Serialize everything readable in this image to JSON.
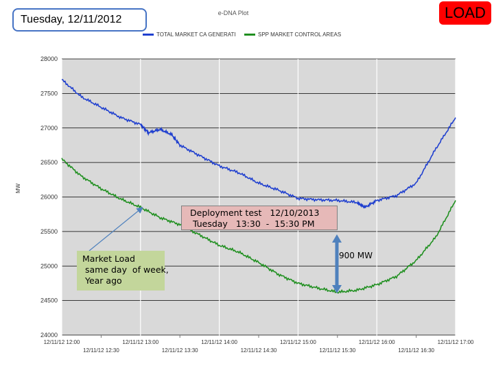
{
  "header": {
    "date_label": "Tuesday, 12/11/2012",
    "badge_label": "LOAD"
  },
  "annotations": {
    "deployment_line1": "Deployment test   12/10/2013",
    "deployment_line2": " Tuesday   13:30  -  15:30 PM",
    "market_line1": "Market Load",
    "market_line2": " same day  of week,",
    "market_line3": " Year ago",
    "mw_label": "900 MW"
  },
  "colors": {
    "series_total": "#1f3fcf",
    "series_spp": "#1f8f1f",
    "plot_bg": "#d9d9d9",
    "deploy_box": "#e6b9b8",
    "market_box": "#c3d69b",
    "badge": "#ff0000",
    "arrow": "#4f81bd"
  },
  "chart_data": {
    "type": "line",
    "title": "e-DNA Plot",
    "ylabel": "MW",
    "xlabel": "",
    "ylim": [
      24000,
      28000
    ],
    "yticks": [
      24000,
      24500,
      25000,
      25500,
      26000,
      26500,
      27000,
      27500,
      28000
    ],
    "ytick_labels": [
      "24000",
      "24500",
      "25000",
      "25500",
      "26000",
      "26500",
      "27000",
      "27500",
      "28000"
    ],
    "xlim": [
      0,
      5
    ],
    "xticks_major": [
      0,
      1,
      2,
      3,
      4,
      5
    ],
    "xtick_labels_major": [
      "12/11/12 12:00",
      "12/11/12 13:00",
      "12/11/12 14:00",
      "12/11/12 15:00",
      "12/11/12 16:00",
      "12/11/12 17:00"
    ],
    "xticks_minor": [
      0.5,
      1.5,
      2.5,
      3.5,
      4.5
    ],
    "xtick_labels_minor": [
      "12/11/12 12:30",
      "12/11/12 13:30",
      "12/11/12 14:30",
      "12/11/12 15:30",
      "12/11/12 16:30"
    ],
    "grid": true,
    "legend_position": "top",
    "series": [
      {
        "name": "TOTAL MARKET CA GENERATI",
        "x": [
          0,
          0.25,
          0.5,
          0.75,
          1.0,
          1.1,
          1.25,
          1.4,
          1.5,
          1.75,
          2.0,
          2.25,
          2.5,
          2.75,
          3.0,
          3.25,
          3.5,
          3.75,
          3.85,
          4.0,
          4.25,
          4.5,
          4.75,
          5.0
        ],
        "values": [
          27700,
          27450,
          27300,
          27150,
          27050,
          26930,
          26980,
          26900,
          26750,
          26600,
          26450,
          26350,
          26200,
          26100,
          25980,
          25960,
          25950,
          25920,
          25850,
          25950,
          26020,
          26200,
          26700,
          27150
        ]
      },
      {
        "name": "SPP MARKET CONTROL AREAS",
        "x": [
          0,
          0.25,
          0.5,
          0.75,
          1.0,
          1.25,
          1.5,
          1.75,
          2.0,
          2.25,
          2.5,
          2.75,
          3.0,
          3.25,
          3.5,
          3.75,
          4.0,
          4.25,
          4.5,
          4.75,
          5.0
        ],
        "values": [
          26550,
          26300,
          26120,
          25970,
          25850,
          25700,
          25600,
          25450,
          25300,
          25200,
          25050,
          24880,
          24750,
          24680,
          24620,
          24650,
          24730,
          24850,
          25080,
          25420,
          25950
        ]
      }
    ]
  }
}
